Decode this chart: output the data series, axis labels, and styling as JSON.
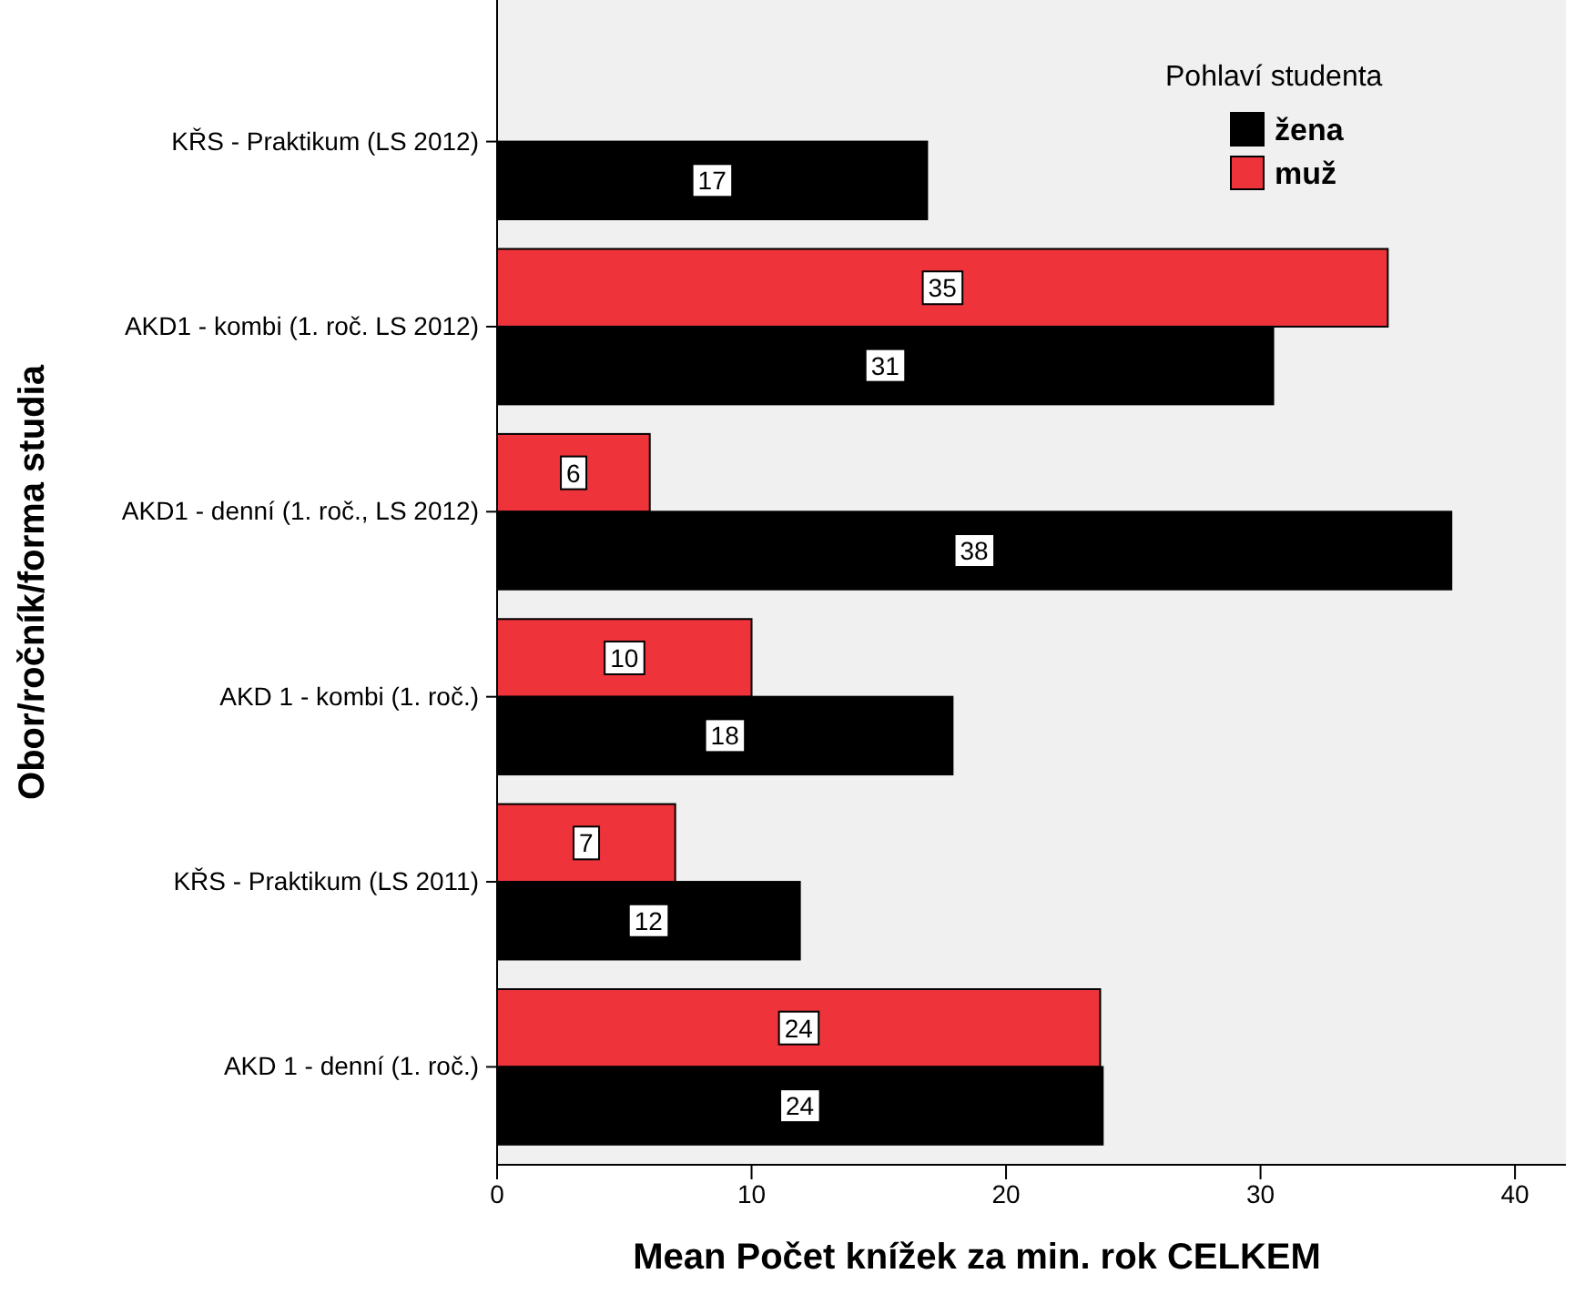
{
  "chart_data": {
    "type": "bar",
    "orientation": "horizontal",
    "categories": [
      "KŘS - Praktikum (LS 2012)",
      "AKD1 - kombi (1. roč. LS 2012)",
      "AKD1 - denní (1. roč., LS 2012)",
      "AKD 1 - kombi (1. roč.)",
      "KŘS - Praktikum (LS 2011)",
      "AKD 1 - denní (1. roč.)"
    ],
    "series": [
      {
        "name": "muž",
        "color": "#ef333b",
        "values": [
          null,
          35.0,
          6.0,
          10.0,
          7.0,
          23.7
        ],
        "value_labels": [
          null,
          "35",
          "6",
          "10",
          "7",
          "24"
        ]
      },
      {
        "name": "žena",
        "color": "#000000",
        "values": [
          16.9,
          30.5,
          37.5,
          17.9,
          11.9,
          23.8
        ],
        "value_labels": [
          "17",
          "31",
          "38",
          "18",
          "12",
          "24"
        ]
      }
    ],
    "xlim": [
      0,
      42
    ],
    "xticks": [
      0,
      10,
      20,
      30,
      40
    ],
    "xlabel": "Mean Počet knížek za min. rok CELKEM",
    "ylabel": "Obor/ročník/forma studia",
    "legend_title": "Pohlaví studenta",
    "legend": "top right",
    "grid": false
  }
}
